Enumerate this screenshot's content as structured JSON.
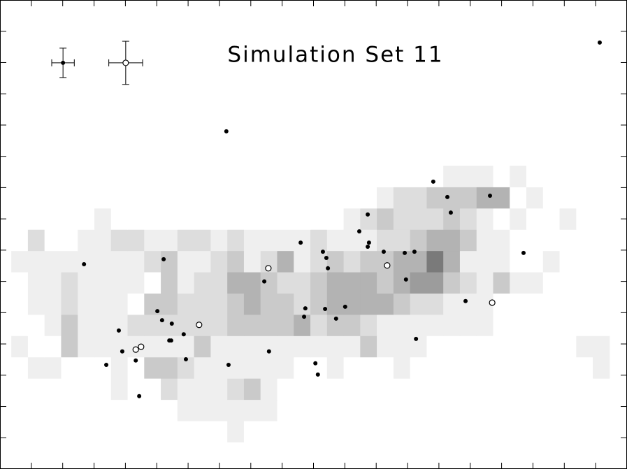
{
  "chart_data": {
    "type": "scatter",
    "title": "Simulation Set 11",
    "xlim": [
      0,
      20
    ],
    "ylim": [
      0,
      15
    ],
    "xticks": [
      1,
      2,
      3,
      4,
      5,
      6,
      7,
      8,
      9,
      10,
      11,
      12,
      13,
      14,
      15,
      16,
      17,
      18,
      19
    ],
    "yticks": [
      1,
      2,
      3,
      4,
      5,
      6,
      7,
      8,
      9,
      10,
      11,
      12,
      13,
      14
    ],
    "heatmap": {
      "colorscale": [
        "#ffffff",
        "#efefef",
        "#dddddd",
        "#cacaca",
        "#b3b3b3",
        "#9c9c9c",
        "#7a7a7a"
      ],
      "xedges": [
        0.36,
        0.89,
        1.42,
        1.95,
        2.48,
        3.01,
        3.54,
        4.07,
        4.6,
        5.13,
        5.66,
        6.19,
        6.72,
        7.25,
        7.78,
        8.31,
        8.84,
        9.37,
        9.9,
        10.43,
        10.96,
        11.49,
        12.02,
        12.55,
        13.08,
        13.61,
        14.14,
        14.67,
        15.2,
        15.73,
        16.26,
        16.79,
        17.32,
        17.85,
        18.38,
        18.91,
        19.44
      ],
      "yedges": [
        0.86,
        1.54,
        2.22,
        2.9,
        3.58,
        4.26,
        4.94,
        5.62,
        6.3,
        6.98,
        7.66,
        8.34,
        9.02,
        9.7
      ],
      "z": [
        [
          0,
          0,
          0,
          0,
          0,
          0,
          0,
          0,
          0,
          0,
          0,
          0,
          0,
          1,
          0,
          0,
          0,
          0,
          0,
          0,
          0,
          0,
          0,
          0,
          0,
          0,
          0,
          0,
          0,
          0,
          0,
          0,
          0,
          0,
          0,
          0
        ],
        [
          0,
          0,
          0,
          0,
          0,
          0,
          0,
          0,
          0,
          0,
          1,
          1,
          1,
          1,
          1,
          1,
          0,
          0,
          0,
          0,
          0,
          0,
          0,
          0,
          0,
          0,
          0,
          0,
          0,
          0,
          0,
          0,
          0,
          0,
          0,
          0
        ],
        [
          0,
          0,
          0,
          0,
          0,
          0,
          1,
          0,
          0,
          2,
          1,
          1,
          1,
          2,
          3,
          1,
          0,
          0,
          0,
          0,
          0,
          0,
          0,
          0,
          0,
          0,
          0,
          0,
          0,
          0,
          0,
          0,
          0,
          0,
          0,
          0
        ],
        [
          0,
          1,
          1,
          0,
          0,
          0,
          1,
          0,
          3,
          3,
          2,
          1,
          1,
          1,
          1,
          1,
          1,
          0,
          0,
          1,
          0,
          0,
          0,
          1,
          0,
          0,
          0,
          0,
          0,
          0,
          0,
          0,
          0,
          0,
          0,
          1
        ],
        [
          1,
          0,
          0,
          3,
          1,
          1,
          1,
          1,
          1,
          1,
          1,
          3,
          1,
          1,
          1,
          1,
          1,
          1,
          1,
          1,
          1,
          3,
          1,
          1,
          1,
          0,
          0,
          0,
          0,
          0,
          0,
          0,
          0,
          0,
          1,
          1
        ],
        [
          0,
          0,
          1,
          3,
          1,
          1,
          1,
          2,
          2,
          2,
          2,
          2,
          2,
          3,
          3,
          3,
          3,
          4,
          2,
          3,
          3,
          2,
          1,
          1,
          1,
          1,
          1,
          1,
          1,
          0,
          0,
          0,
          0,
          0,
          0,
          0
        ],
        [
          0,
          1,
          1,
          2,
          1,
          1,
          1,
          0,
          3,
          3,
          2,
          2,
          2,
          3,
          4,
          3,
          3,
          2,
          3,
          4,
          4,
          4,
          4,
          3,
          2,
          2,
          1,
          1,
          1,
          0,
          0,
          0,
          0,
          0,
          0,
          0
        ],
        [
          0,
          1,
          1,
          2,
          1,
          1,
          1,
          1,
          0,
          3,
          1,
          2,
          2,
          4,
          4,
          3,
          2,
          2,
          3,
          4,
          4,
          4,
          3,
          4,
          5,
          5,
          3,
          2,
          1,
          3,
          1,
          1,
          0,
          0,
          0,
          0
        ],
        [
          1,
          1,
          1,
          1,
          1,
          1,
          1,
          1,
          2,
          3,
          1,
          1,
          2,
          3,
          1,
          2,
          4,
          1,
          2,
          3,
          2,
          3,
          3,
          4,
          4,
          6,
          4,
          1,
          1,
          1,
          0,
          0,
          1,
          0,
          0,
          0
        ],
        [
          0,
          2,
          0,
          0,
          1,
          1,
          2,
          2,
          1,
          1,
          2,
          2,
          1,
          2,
          1,
          1,
          1,
          1,
          2,
          1,
          1,
          1,
          2,
          2,
          3,
          4,
          4,
          3,
          1,
          1,
          0,
          0,
          0,
          0,
          0,
          0
        ],
        [
          0,
          0,
          0,
          0,
          0,
          1,
          0,
          0,
          0,
          0,
          0,
          0,
          0,
          0,
          0,
          0,
          0,
          0,
          0,
          0,
          1,
          2,
          3,
          2,
          2,
          2,
          3,
          2,
          1,
          0,
          1,
          0,
          0,
          1,
          0,
          0
        ],
        [
          0,
          0,
          0,
          0,
          0,
          0,
          0,
          0,
          0,
          0,
          0,
          0,
          0,
          0,
          0,
          0,
          0,
          0,
          0,
          0,
          0,
          0,
          1,
          2,
          2,
          3,
          3,
          3,
          4,
          4,
          0,
          1,
          0,
          0,
          0,
          0
        ],
        [
          0,
          0,
          0,
          0,
          0,
          0,
          0,
          0,
          0,
          0,
          0,
          0,
          0,
          0,
          0,
          0,
          0,
          0,
          0,
          0,
          0,
          0,
          0,
          0,
          0,
          0,
          1,
          1,
          1,
          0,
          1,
          0,
          0,
          0,
          0,
          0
        ]
      ]
    },
    "series": [
      {
        "marker": "filled",
        "color": "#000000",
        "x": [
          19.13,
          7.22,
          13.82,
          15.63,
          14.27,
          14.38,
          11.73,
          11.46,
          9.59,
          11.77,
          11.73,
          10.3,
          12.24,
          10.41,
          13.22,
          12.91,
          16.7,
          2.68,
          5.22,
          10.46,
          8.43,
          12.95,
          14.85,
          9.74,
          10.37,
          11.01,
          9.7,
          10.72,
          5.02,
          5.17,
          5.48,
          5.86,
          3.79,
          5.46,
          5.4,
          13.27,
          3.9,
          8.58,
          4.33,
          5.93,
          3.39,
          7.29,
          10.06,
          10.14,
          4.44
        ],
        "y": [
          13.64,
          10.8,
          9.19,
          8.74,
          8.7,
          8.2,
          8.14,
          7.6,
          7.24,
          7.24,
          7.11,
          6.95,
          6.95,
          6.75,
          6.95,
          6.91,
          6.91,
          6.55,
          6.71,
          6.42,
          6.0,
          6.06,
          5.37,
          5.14,
          5.12,
          5.19,
          4.87,
          4.81,
          5.05,
          4.76,
          4.65,
          4.31,
          4.43,
          4.11,
          4.11,
          4.16,
          3.76,
          3.76,
          3.47,
          3.51,
          3.33,
          3.33,
          3.38,
          3.02,
          2.33
        ]
      },
      {
        "marker": "open",
        "color": "#000000",
        "x": [
          8.56,
          12.35,
          6.35,
          15.7,
          4.33,
          4.5
        ],
        "y": [
          6.42,
          6.51,
          4.61,
          5.32,
          3.82,
          3.91
        ]
      }
    ],
    "error_bars": [
      {
        "marker": "filled",
        "x": 2.01,
        "y": 12.99,
        "xerr": 0.36,
        "yerr": 0.47
      },
      {
        "marker": "open",
        "x": 4.01,
        "y": 12.99,
        "xerr": 0.54,
        "yerr": 0.69
      }
    ]
  }
}
